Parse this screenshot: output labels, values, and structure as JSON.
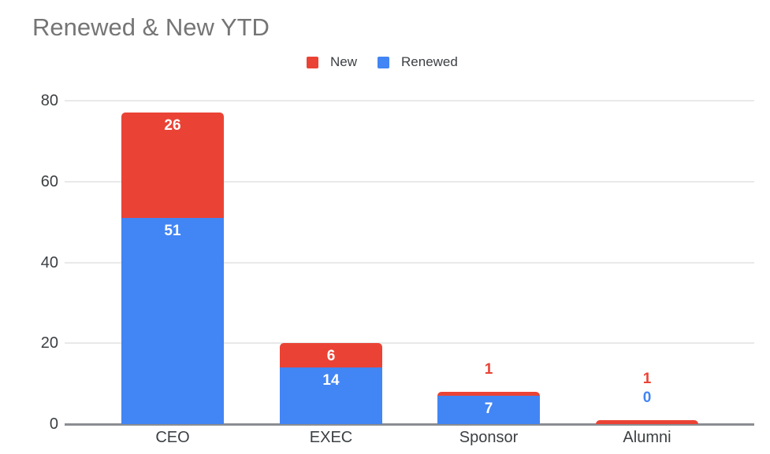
{
  "title": "Renewed & New YTD",
  "legend": {
    "items": [
      {
        "label": "New",
        "color": "#EA4335"
      },
      {
        "label": "Renewed",
        "color": "#4285F4"
      }
    ]
  },
  "colors": {
    "new_red": "#EA4335",
    "renewed_blue": "#4285F4",
    "title_gray": "#757575",
    "axis_text": "#3c4043",
    "gridline": "#e9e9e9",
    "baseline": "#8a8d91",
    "inside_label": "#ffffff",
    "background": "#ffffff"
  },
  "chart_data": {
    "type": "bar",
    "stacked": true,
    "title": "Renewed & New YTD",
    "categories": [
      "CEO",
      "EXEC",
      "Sponsor",
      "Alumni"
    ],
    "series": [
      {
        "name": "Renewed",
        "color": "#4285F4",
        "values": [
          51,
          14,
          7,
          0
        ]
      },
      {
        "name": "New",
        "color": "#EA4335",
        "values": [
          26,
          6,
          1,
          1
        ]
      }
    ],
    "totals": [
      77,
      20,
      8,
      1
    ],
    "xlabel": "",
    "ylabel": "",
    "ylim": [
      0,
      80
    ],
    "yticks": [
      0,
      20,
      40,
      60,
      80
    ],
    "grid": true,
    "legend_position": "top",
    "data_labels": true
  }
}
